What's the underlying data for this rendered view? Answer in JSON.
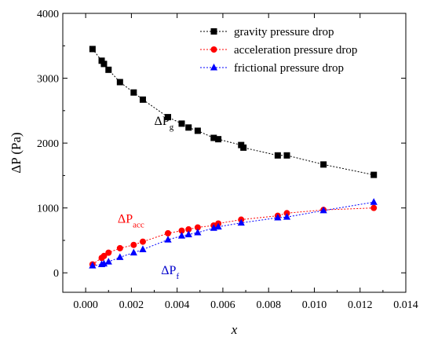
{
  "chart_data": {
    "type": "line",
    "xlabel": "x",
    "ylabel": "ΔP (Pa)",
    "xlim": [
      -0.001,
      0.014
    ],
    "ylim": [
      -300,
      4000
    ],
    "xticks": [
      0.0,
      0.002,
      0.004,
      0.006,
      0.008,
      0.01,
      0.012,
      0.014
    ],
    "xtick_labels": [
      "0.000",
      "0.002",
      "0.004",
      "0.006",
      "0.008",
      "0.010",
      "0.012",
      "0.014"
    ],
    "yticks": [
      0,
      1000,
      2000,
      3000,
      4000
    ],
    "ytick_labels": [
      "0",
      "1000",
      "2000",
      "3000",
      "4000"
    ],
    "grid": false,
    "legend": "top-right",
    "series": [
      {
        "name": "gravity pressure drop",
        "marker": "square",
        "color": "#000000",
        "x": [
          0.0003,
          0.0007,
          0.0008,
          0.001,
          0.0015,
          0.0021,
          0.0025,
          0.0036,
          0.0042,
          0.0045,
          0.0049,
          0.0056,
          0.0058,
          0.0068,
          0.0069,
          0.0084,
          0.0088,
          0.0104,
          0.0126
        ],
        "y": [
          3450,
          3270,
          3220,
          3130,
          2940,
          2780,
          2670,
          2400,
          2300,
          2240,
          2190,
          2080,
          2060,
          1970,
          1930,
          1810,
          1810,
          1670,
          1510
        ]
      },
      {
        "name": "acceleration pressure drop",
        "marker": "circle",
        "color": "#ff0000",
        "x": [
          0.0003,
          0.0007,
          0.0008,
          0.001,
          0.0015,
          0.0021,
          0.0025,
          0.0036,
          0.0042,
          0.0045,
          0.0049,
          0.0056,
          0.0058,
          0.0068,
          0.0084,
          0.0088,
          0.0104,
          0.0126
        ],
        "y": [
          130,
          230,
          260,
          310,
          380,
          430,
          480,
          610,
          650,
          670,
          700,
          730,
          760,
          820,
          880,
          920,
          970,
          1000
        ]
      },
      {
        "name": "frictional pressure drop",
        "marker": "triangle",
        "color": "#0000ff",
        "x": [
          0.0003,
          0.0007,
          0.0008,
          0.001,
          0.0015,
          0.0021,
          0.0025,
          0.0036,
          0.0042,
          0.0045,
          0.0049,
          0.0056,
          0.0058,
          0.0068,
          0.0084,
          0.0088,
          0.0104,
          0.0126
        ],
        "y": [
          110,
          130,
          140,
          170,
          240,
          310,
          360,
          510,
          570,
          590,
          620,
          690,
          710,
          770,
          850,
          860,
          960,
          1090
        ]
      }
    ],
    "annotations": [
      {
        "symbol": "ΔP",
        "subscript": "g",
        "color": "#000000",
        "x": 0.003,
        "y": 2280
      },
      {
        "symbol": "ΔP",
        "subscript": "acc",
        "color": "#ff0000",
        "x": 0.0014,
        "y": 770
      },
      {
        "symbol": "ΔP",
        "subscript": "f",
        "color": "#0000cc",
        "x": 0.0033,
        "y": -20
      }
    ]
  }
}
